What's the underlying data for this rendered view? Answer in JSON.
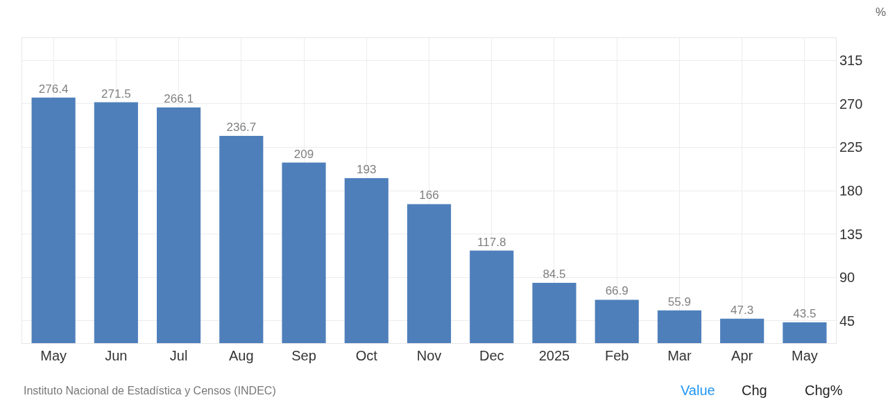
{
  "chart_data": {
    "type": "bar",
    "ylabel": "%",
    "categories": [
      "May",
      "Jun",
      "Jul",
      "Aug",
      "Sep",
      "Oct",
      "Nov",
      "Dec",
      "2025",
      "Feb",
      "Mar",
      "Apr",
      "May"
    ],
    "values": [
      276.4,
      271.5,
      266.1,
      236.7,
      209,
      193,
      166,
      117.8,
      84.5,
      66.9,
      55.9,
      47.3,
      43.5
    ],
    "color": "#4e7fbb",
    "data_labels": true,
    "ylim": [
      22,
      338
    ],
    "yticks": [
      45,
      90,
      135,
      180,
      225,
      270,
      315
    ],
    "grid": true,
    "annotations": [
      "Instituto Nacional de Estadística y Censos (INDEC)",
      "Value",
      "Chg",
      "Chg%"
    ]
  }
}
